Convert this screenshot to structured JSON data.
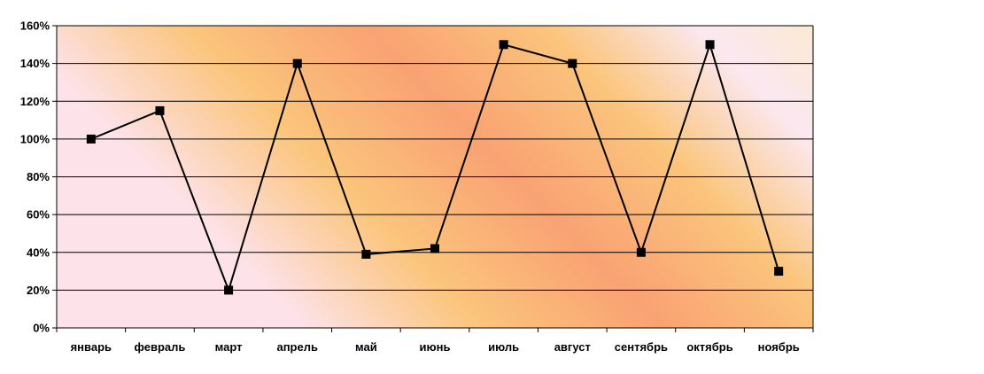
{
  "chart_data": {
    "type": "line",
    "title": "",
    "xlabel": "",
    "ylabel": "",
    "categories": [
      "январь",
      "февраль",
      "март",
      "апрель",
      "май",
      "июнь",
      "июль",
      "август",
      "сентябрь",
      "октябрь",
      "ноябрь"
    ],
    "series": [
      {
        "values": [
          100,
          115,
          20,
          140,
          39,
          42,
          150,
          140,
          40,
          150,
          30
        ]
      }
    ],
    "ylim": [
      0,
      160
    ],
    "yticks": [
      0,
      20,
      40,
      60,
      80,
      100,
      120,
      140,
      160
    ],
    "ytick_labels": [
      "0%",
      "20%",
      "40%",
      "60%",
      "80%",
      "100%",
      "120%",
      "140%",
      "160%"
    ],
    "grid": true,
    "legend": false,
    "marker": "square",
    "line_color": "#000000",
    "background_colors": [
      "#fde2ea",
      "#fbc57c",
      "#f9a273",
      "#fbe8f0",
      "#fbeac8"
    ]
  }
}
